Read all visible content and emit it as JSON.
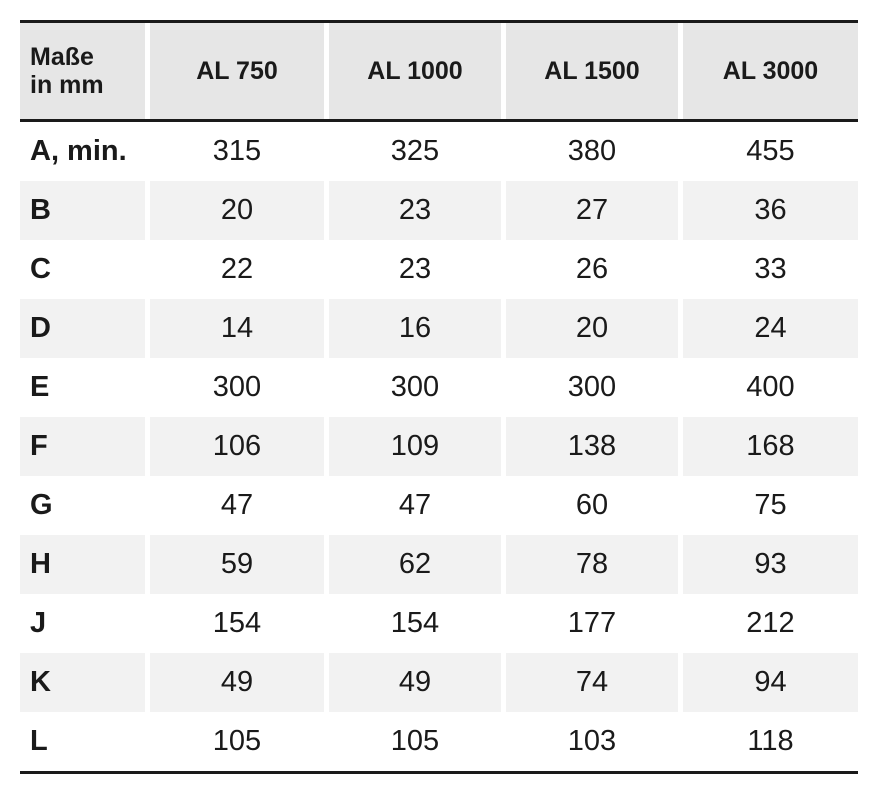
{
  "table": {
    "headers": [
      "Maße\nin mm",
      "AL 750",
      "AL 1000",
      "AL 1500",
      "AL 3000"
    ],
    "rows": [
      [
        "A, min.",
        "315",
        "325",
        "380",
        "455"
      ],
      [
        "B",
        "20",
        "23",
        "27",
        "36"
      ],
      [
        "C",
        "22",
        "23",
        "26",
        "33"
      ],
      [
        "D",
        "14",
        "16",
        "20",
        "24"
      ],
      [
        "E",
        "300",
        "300",
        "300",
        "400"
      ],
      [
        "F",
        "106",
        "109",
        "138",
        "168"
      ],
      [
        "G",
        "47",
        "47",
        "60",
        "75"
      ],
      [
        "H",
        "59",
        "62",
        "78",
        "93"
      ],
      [
        "J",
        "154",
        "154",
        "177",
        "212"
      ],
      [
        "K",
        "49",
        "49",
        "74",
        "94"
      ],
      [
        "L",
        "105",
        "105",
        "103",
        "118"
      ]
    ]
  }
}
